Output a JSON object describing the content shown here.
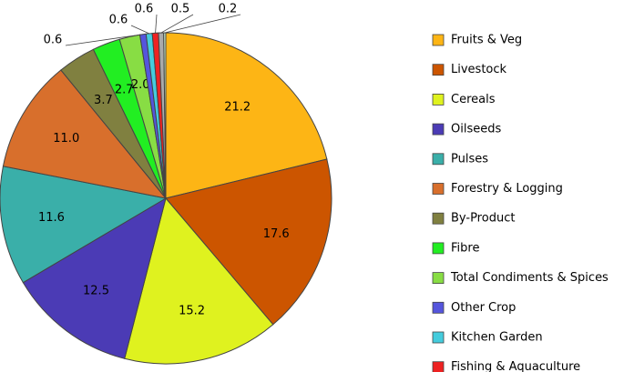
{
  "chart_data": {
    "type": "pie",
    "categories": [
      "Fruits & Veg",
      "Livestock",
      "Cereals",
      "Oilseeds",
      "Pulses",
      "Forestry & Logging",
      "By-Product",
      "Fibre",
      "Total Condiments & Spices",
      "Other Crop",
      "Kitchen Garden",
      "Fishing & Aquaculture",
      null,
      null
    ],
    "values": [
      21.2,
      17.6,
      15.2,
      12.5,
      11.6,
      11.0,
      3.7,
      2.7,
      2.0,
      0.6,
      0.6,
      0.6,
      0.5,
      0.2
    ],
    "value_labels": [
      "21.2",
      "17.6",
      "15.2",
      "12.5",
      "11.6",
      "11.0",
      "3.7",
      "2.7",
      "2.0",
      "0.6",
      "0.6",
      "0.6",
      "0.5",
      "0.2"
    ],
    "colors": [
      "#fdb515",
      "#cc5500",
      "#dff21f",
      "#4b3bb5",
      "#3aafa9",
      "#d86f2c",
      "#808040",
      "#22ee22",
      "#88dd44",
      "#5555dd",
      "#44ccdd",
      "#ee2222",
      "#aaaaaa",
      "#cceecc"
    ],
    "legend": "right"
  }
}
